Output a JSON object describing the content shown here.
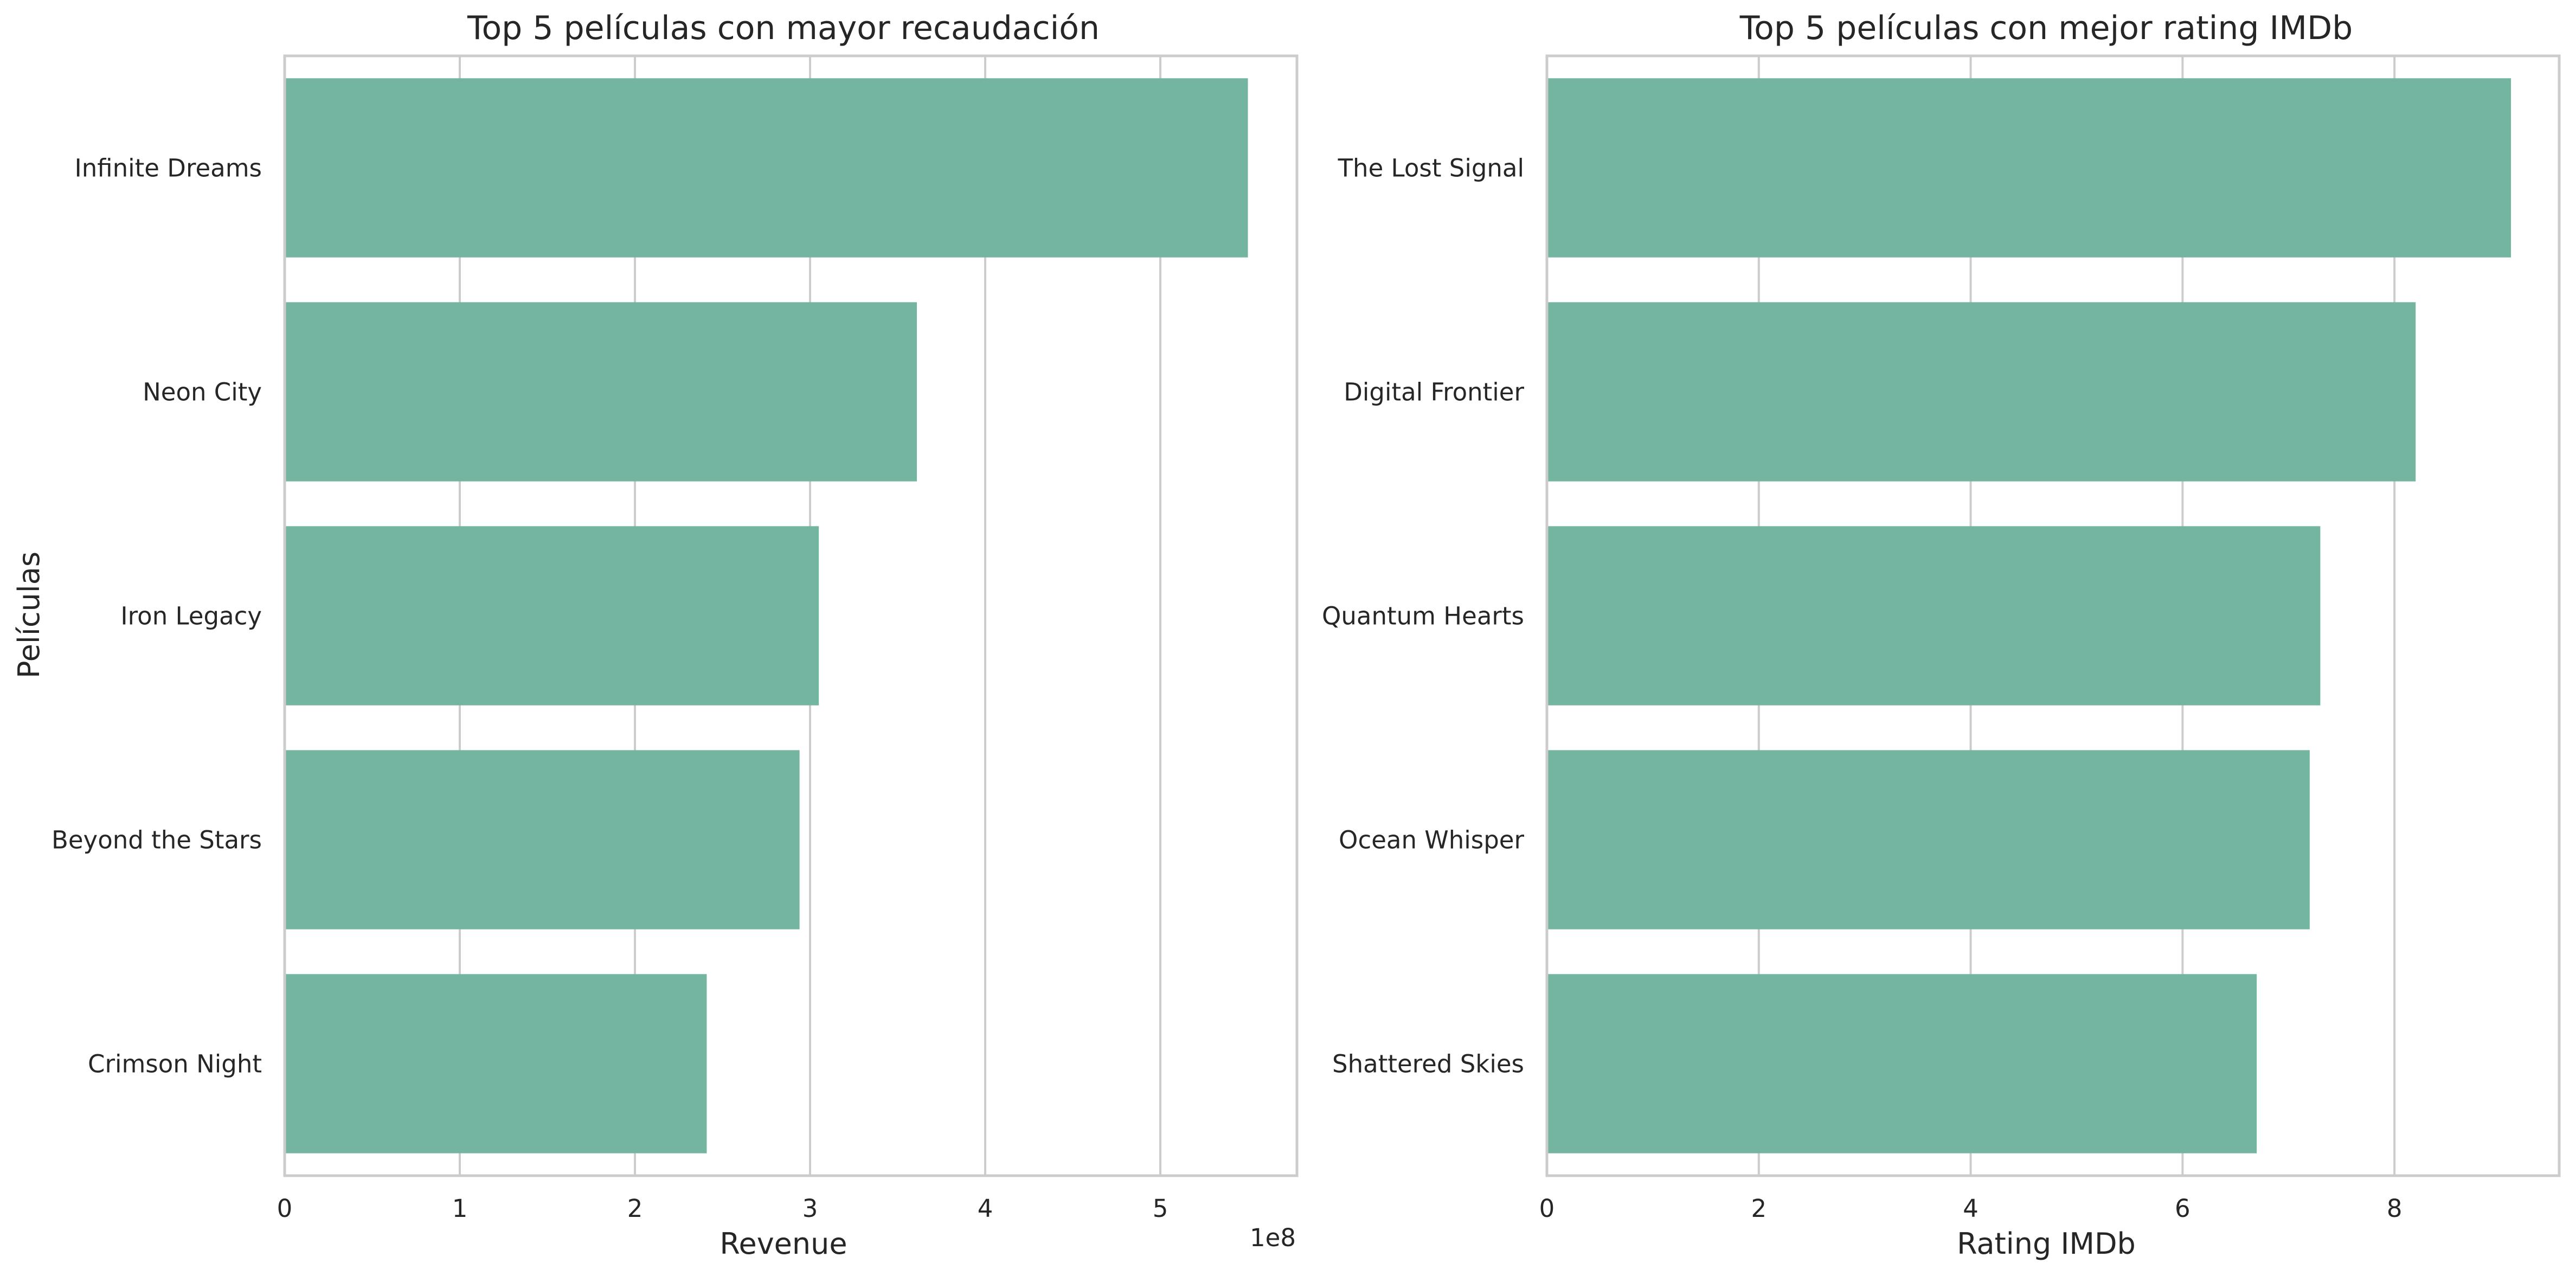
{
  "chart_data": [
    {
      "type": "bar",
      "orientation": "horizontal",
      "title": "Top 5 películas con mayor recaudación",
      "xlabel": "Revenue",
      "ylabel": "Películas",
      "x_offset_label": "1e8",
      "categories": [
        "Infinite Dreams",
        "Neon City",
        "Iron Legacy",
        "Beyond the Stars",
        "Crimson Night"
      ],
      "values": [
        550000000,
        361000000,
        305000000,
        294000000,
        241000000
      ],
      "xticks": [
        0,
        100000000,
        200000000,
        300000000,
        400000000,
        500000000
      ],
      "xtick_labels": [
        "0",
        "1",
        "2",
        "3",
        "4",
        "5"
      ],
      "xlim": [
        0,
        578000000
      ],
      "grid": true,
      "bar_color": "#73b5a0"
    },
    {
      "type": "bar",
      "orientation": "horizontal",
      "title": "Top 5 películas con mejor rating IMDb",
      "xlabel": "Rating IMDb",
      "ylabel": "",
      "categories": [
        "The Lost Signal",
        "Digital Frontier",
        "Quantum Hearts",
        "Ocean Whisper",
        "Shattered Skies"
      ],
      "values": [
        9.1,
        8.2,
        7.3,
        7.2,
        6.7
      ],
      "xticks": [
        0,
        2,
        4,
        6,
        8
      ],
      "xtick_labels": [
        "0",
        "2",
        "4",
        "6",
        "8"
      ],
      "xlim": [
        0,
        9.555
      ],
      "grid": true,
      "bar_color": "#73b5a0"
    }
  ]
}
